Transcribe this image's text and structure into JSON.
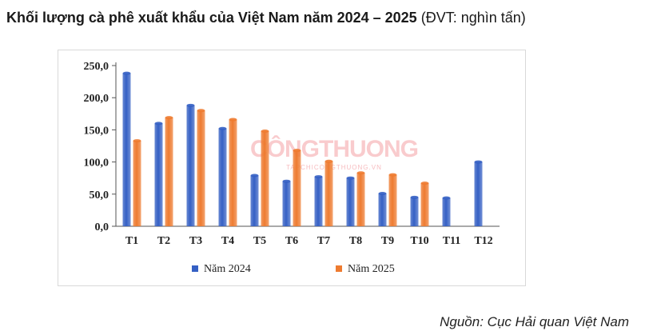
{
  "header": {
    "title": "Khối lượng cà phê xuất khẩu của Việt Nam năm 2024 – 2025",
    "unit": "(ĐVT: nghìn tấn)"
  },
  "watermark": {
    "main": "CÔNGTHUONG",
    "sub": "TAPCHICONGTHUONG.VN"
  },
  "source": "Nguồn: Cục Hải quan Việt Nam",
  "chart_data": {
    "type": "bar",
    "title": "Khối lượng cà phê xuất khẩu của Việt Nam năm 2024 – 2025",
    "unit": "(ĐVT: nghìn tấn)",
    "xlabel": "",
    "ylabel": "",
    "ylim": [
      0,
      250
    ],
    "yticks": [
      "0,0",
      "50,0",
      "100,0",
      "150,0",
      "200,0",
      "250,0"
    ],
    "categories": [
      "T1",
      "T2",
      "T3",
      "T4",
      "T5",
      "T6",
      "T7",
      "T8",
      "T9",
      "T10",
      "T11",
      "T12"
    ],
    "series": [
      {
        "name": "Năm 2024",
        "color": "#3560c4",
        "values": [
          238,
          160,
          188,
          152,
          79,
          70,
          77,
          75,
          51,
          45,
          44,
          100
        ]
      },
      {
        "name": "Năm 2025",
        "color": "#ee7b30",
        "values": [
          133,
          169,
          180,
          166,
          148,
          118,
          101,
          83,
          80,
          67,
          null,
          null
        ]
      }
    ],
    "grid": true,
    "legend_position": "bottom"
  }
}
